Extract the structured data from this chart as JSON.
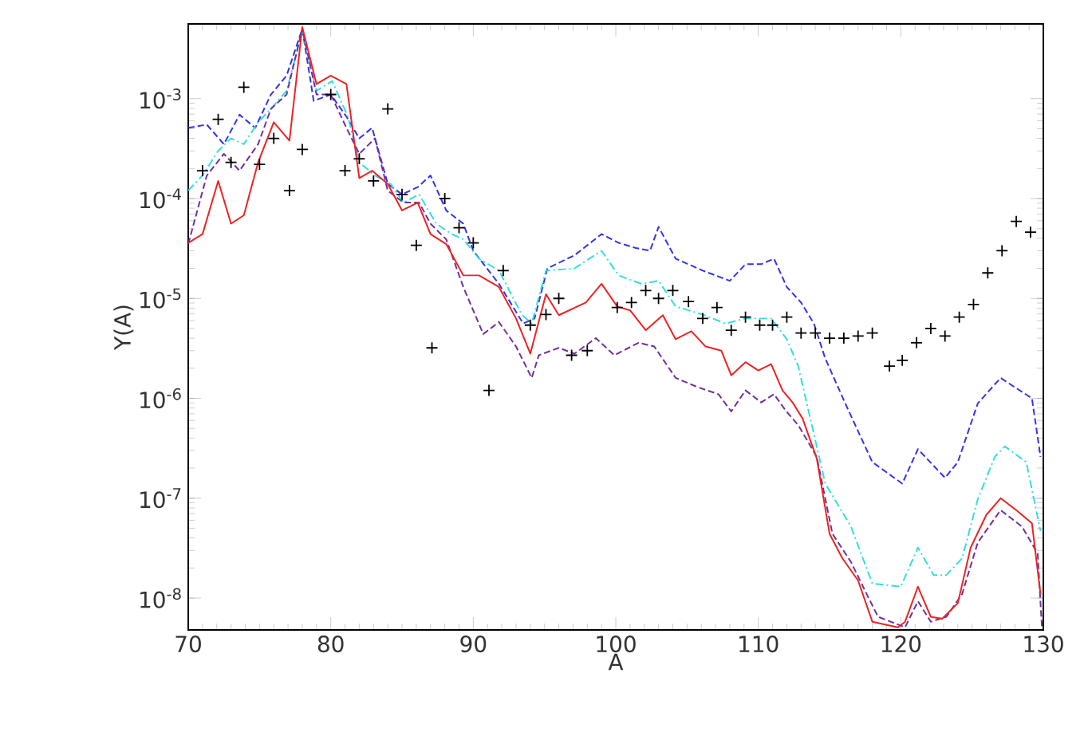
{
  "chart_data": {
    "type": "line",
    "xlabel": "A",
    "ylabel": "Y(A)",
    "log": "y",
    "grid": false,
    "xlim": [
      70,
      130
    ],
    "ylim": [
      4.8e-09,
      0.0056
    ],
    "xticks": [
      70,
      80,
      90,
      100,
      110,
      120,
      130
    ],
    "yticks": [
      {
        "value": 1e-08,
        "label": "10$^{-8}$"
      },
      {
        "value": 1e-07,
        "label": "10$^{-7}$"
      },
      {
        "value": 1e-06,
        "label": "10$^{-6}$"
      },
      {
        "value": 1e-05,
        "label": "10$^{-5}$"
      },
      {
        "value": 0.0001,
        "label": "10$^{-4}$"
      },
      {
        "value": 0.001,
        "label": "10$^{-3}$"
      }
    ],
    "series": [
      {
        "color": "#3333ee",
        "line_style": "dashed",
        "x": [
          70,
          71.3,
          72.5,
          73.6,
          74.7,
          75.8,
          76.9,
          78,
          78.8,
          80,
          81.1,
          82,
          82.9,
          84,
          85,
          86.1,
          87,
          88.1,
          89.3,
          90,
          91.8,
          93.5,
          94.3,
          95.2,
          97.1,
          99,
          100.2,
          101.4,
          102.4,
          103,
          104.2,
          106.1,
          108,
          109.1,
          110.2,
          111.1,
          112,
          113,
          113.9,
          114.7,
          116.1,
          118,
          120.1,
          121.2,
          123.1,
          124,
          125.4,
          127,
          129.2,
          129.8
        ],
        "values": [
          0.00051,
          0.00055,
          0.00035,
          0.00069,
          0.00051,
          0.0011,
          0.0017,
          0.005,
          0.00095,
          0.0011,
          0.00066,
          0.0004,
          0.00051,
          0.00014,
          0.00011,
          0.00013,
          0.00017,
          7.6e-05,
          5.6e-05,
          3e-05,
          1.4e-05,
          5.6e-06,
          6.3e-06,
          2e-05,
          2.7e-05,
          4.4e-05,
          3.6e-05,
          3.2e-05,
          3e-05,
          5.2e-05,
          2.5e-05,
          1.9e-05,
          1.5e-05,
          2.2e-05,
          2.2e-05,
          2.5e-05,
          1.3e-05,
          9.1e-06,
          5.6e-06,
          2.5e-06,
          8.9e-07,
          2.3e-07,
          1.4e-07,
          3.1e-07,
          1.6e-07,
          2.3e-07,
          8.9e-07,
          1.6e-06,
          1e-06,
          2.6e-07
        ]
      },
      {
        "color": "#33dddd",
        "line_style": "dotted",
        "x": [
          70,
          71,
          72.1,
          73,
          73.9,
          74.9,
          75.8,
          76.9,
          78,
          79,
          80.1,
          81.2,
          82,
          83.1,
          84.2,
          85.1,
          86.2,
          87.4,
          88.5,
          89.3,
          90.4,
          91.8,
          93.4,
          94.1,
          95.1,
          97.1,
          99,
          100.2,
          101.8,
          103,
          104.2,
          106.1,
          107.7,
          109.1,
          110.9,
          112,
          112.8,
          114.7,
          116.5,
          118,
          120,
          121.2,
          122.3,
          123.2,
          124.3,
          125.4,
          126.6,
          127.3,
          128.8,
          129.8
        ],
        "values": [
          0.00012,
          0.00017,
          0.0003,
          0.0004,
          0.00035,
          0.00058,
          0.00079,
          0.0012,
          0.0047,
          0.0012,
          0.0015,
          0.00066,
          0.00023,
          0.00017,
          0.00014,
          9.1e-05,
          0.00011,
          5.6e-05,
          4.4e-05,
          3.9e-05,
          2.5e-05,
          1.9e-05,
          6.9e-06,
          5.6e-06,
          1.9e-05,
          2e-05,
          3e-05,
          1.7e-05,
          1.4e-05,
          1.5e-05,
          8.3e-06,
          6.9e-06,
          5.6e-06,
          6.3e-06,
          6.3e-06,
          3.9e-06,
          2.1e-06,
          1.4e-07,
          5.2e-08,
          1.4e-08,
          1.3e-08,
          3.2e-08,
          1.7e-08,
          1.7e-08,
          2.5e-08,
          9.8e-08,
          2.6e-07,
          3.3e-07,
          2.3e-07,
          4.7e-08
        ]
      },
      {
        "color": "#7030a0",
        "line_style": "dashed",
        "x": [
          70,
          71.3,
          72.5,
          73.6,
          74.9,
          75.8,
          76.9,
          78,
          79,
          80,
          81.1,
          82,
          83.1,
          84,
          85.1,
          86.2,
          87,
          88.1,
          89.3,
          90.7,
          91.8,
          93,
          94.1,
          94.6,
          96,
          97.1,
          98.6,
          99.9,
          101.6,
          102.7,
          104.2,
          105.7,
          107.2,
          108.1,
          109.1,
          110.2,
          111.1,
          111.9,
          112.8,
          114.1,
          115.2,
          116.5,
          117.6,
          118.4,
          120.3,
          121.2,
          122.1,
          123.2,
          124.3,
          125.4,
          127,
          128.5,
          129.6,
          129.9
        ],
        "values": [
          3.5e-05,
          0.00017,
          0.00028,
          0.00019,
          0.00035,
          0.00079,
          0.0011,
          0.005,
          0.0011,
          0.0011,
          0.00051,
          0.00028,
          0.0004,
          0.00012,
          9.1e-05,
          9.1e-05,
          5.6e-05,
          3.9e-05,
          1.3e-05,
          4.4e-06,
          5.8e-06,
          3.3e-06,
          1.6e-06,
          2.7e-06,
          3.2e-06,
          2.8e-06,
          4e-06,
          2.7e-06,
          3.6e-06,
          3.3e-06,
          1.6e-06,
          1.3e-06,
          1.1e-06,
          7.4e-07,
          1.2e-06,
          9.1e-07,
          1.1e-06,
          7.6e-07,
          5.4e-07,
          2.6e-07,
          4.4e-08,
          2.3e-08,
          1.1e-08,
          6.5e-09,
          5.1e-09,
          9.3e-09,
          5.8e-09,
          6.5e-09,
          1.1e-08,
          3.6e-08,
          7.6e-08,
          5.2e-08,
          2.8e-08,
          5.1e-09
        ]
      },
      {
        "color": "#ee2222",
        "line_style": "solid",
        "x": [
          70,
          71,
          72.1,
          73,
          73.9,
          74.9,
          76,
          77.1,
          78,
          79,
          80,
          81.1,
          82,
          82.9,
          84,
          85,
          86.1,
          87,
          88.1,
          89.3,
          90.4,
          91.8,
          93,
          94,
          95.1,
          96,
          97.9,
          99,
          100.1,
          101,
          102.1,
          103.3,
          104.2,
          105.3,
          106.3,
          107.4,
          108.1,
          109.1,
          110,
          110.9,
          111.7,
          112.4,
          113.1,
          114.1,
          115,
          115.9,
          117,
          118,
          119.8,
          120.3,
          121.2,
          122.1,
          122.9,
          124,
          124.9,
          126,
          127,
          128.1,
          129.2,
          129.8
        ],
        "values": [
          3.6e-05,
          4.4e-05,
          0.00015,
          5.6e-05,
          6.8e-05,
          0.00023,
          0.00058,
          0.00038,
          0.0052,
          0.0014,
          0.0017,
          0.0014,
          0.00016,
          0.00019,
          0.00014,
          7.6e-05,
          9.1e-05,
          4.4e-05,
          3.5e-05,
          1.7e-05,
          1.7e-05,
          1.3e-05,
          6.3e-06,
          2.8e-06,
          1.1e-05,
          6.8e-06,
          9.1e-06,
          1.4e-05,
          8.3e-06,
          7.6e-06,
          4.8e-06,
          6.8e-06,
          3.9e-06,
          4.7e-06,
          3.3e-06,
          3e-06,
          1.7e-06,
          2.3e-06,
          1.9e-06,
          2.2e-06,
          1.2e-06,
          9.1e-07,
          6.3e-07,
          2.5e-07,
          4.4e-08,
          2.5e-08,
          1.5e-08,
          5.8e-09,
          5.1e-09,
          5.8e-09,
          1.3e-08,
          6.5e-09,
          6.2e-09,
          8.9e-09,
          3.2e-08,
          6.8e-08,
          1e-07,
          7.6e-08,
          5.6e-08,
          1.1e-08
        ]
      },
      {
        "type": "scatter",
        "color": "#000000",
        "marker": "cross",
        "x": [
          71,
          72.1,
          73,
          73.9,
          75,
          76,
          77.1,
          78,
          80,
          81,
          82,
          83,
          84,
          85,
          86,
          87.1,
          88,
          89,
          90,
          91.1,
          92.1,
          94,
          95.1,
          96,
          96.9,
          98,
          100.1,
          101.1,
          102.1,
          103,
          104,
          105.1,
          106.1,
          107.1,
          108.1,
          109.1,
          110.1,
          111,
          112,
          113,
          114,
          115,
          116,
          117,
          118,
          119.2,
          120.1,
          121.1,
          122.1,
          123.1,
          124.1,
          125.1,
          126.1,
          127.1,
          128.1,
          129.1
        ],
        "values": [
          0.00019,
          0.00062,
          0.00023,
          0.0013,
          0.00022,
          0.0004,
          0.00012,
          0.00031,
          0.0011,
          0.00019,
          0.00025,
          0.00015,
          0.00079,
          0.00011,
          3.4e-05,
          3.2e-06,
          0.0001,
          5.1e-05,
          3.6e-05,
          1.2e-06,
          1.9e-05,
          5.4e-06,
          6.9e-06,
          1e-05,
          2.7e-06,
          3e-06,
          8.1e-06,
          9.1e-06,
          1.2e-05,
          1e-05,
          1.2e-05,
          9.3e-06,
          6.3e-06,
          8.1e-06,
          4.8e-06,
          6.5e-06,
          5.4e-06,
          5.4e-06,
          6.5e-06,
          4.5e-06,
          4.5e-06,
          4e-06,
          4e-06,
          4.2e-06,
          4.5e-06,
          2.1e-06,
          2.4e-06,
          3.6e-06,
          5e-06,
          4.2e-06,
          6.5e-06,
          8.7e-06,
          1.8e-05,
          3e-05,
          5.9e-05,
          4.6e-05
        ]
      }
    ]
  }
}
